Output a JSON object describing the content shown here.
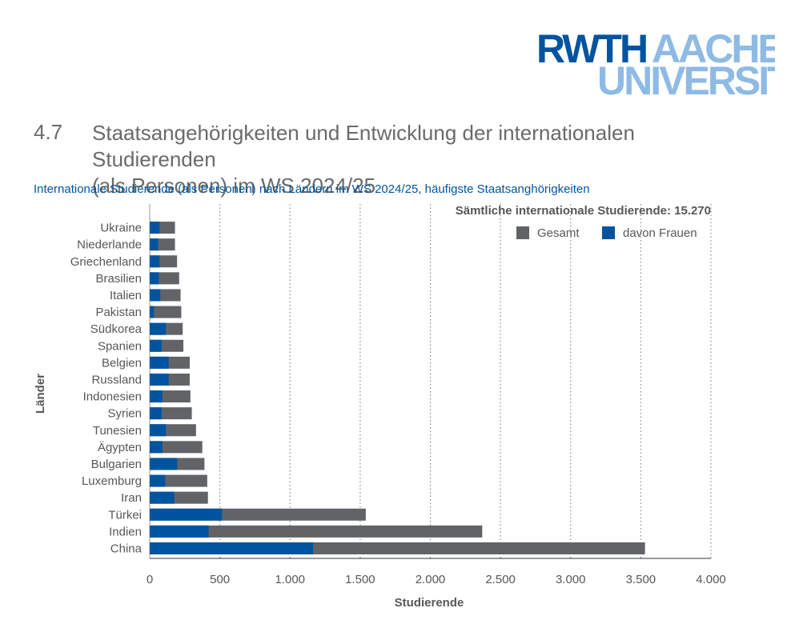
{
  "logo": {
    "part1": "RWTH",
    "part2": "AACHEN",
    "part3": "UNIVERSITY"
  },
  "section": {
    "number": "4.7",
    "title_line1": "Staatsangehörigkeiten und Entwicklung der internationalen Studierenden",
    "title_line2": "(als Personen) im WS 2024/25"
  },
  "subtitle": "Internationale Studierende (als Personen) nach Ländern im WS 2024/25, häufigste Staatsanghörigkeiten",
  "colors": {
    "gesamt": "#616366",
    "frauen": "#00549f",
    "logo_dark": "#00549f",
    "logo_light": "#8ebae5"
  },
  "chart_data": {
    "type": "bar",
    "orientation": "horizontal",
    "stacked_overlay": true,
    "annotation": "Sämtliche internationale Studierende: 15.270",
    "xlabel": "Studierende",
    "ylabel": "Länder",
    "xlim": [
      0,
      4000
    ],
    "x_ticks": [
      0,
      500,
      1000,
      1500,
      2000,
      2500,
      3000,
      3500,
      4000
    ],
    "x_tick_labels": [
      "0",
      "500",
      "1.000",
      "1.500",
      "2.000",
      "2.500",
      "3.000",
      "3.500",
      "4.000"
    ],
    "grid": "vertical dotted",
    "legend_position": "top-right",
    "categories": [
      "Ukraine",
      "Niederlande",
      "Griechenland",
      "Brasilien",
      "Italien",
      "Pakistan",
      "Südkorea",
      "Spanien",
      "Belgien",
      "Russland",
      "Indonesien",
      "Syrien",
      "Tunesien",
      "Ägypten",
      "Bulgarien",
      "Luxemburg",
      "Iran",
      "Türkei",
      "Indien",
      "China"
    ],
    "series": [
      {
        "name": "Gesamt",
        "color": "#616366",
        "values": [
          180,
          180,
          195,
          210,
          220,
          225,
          235,
          240,
          285,
          285,
          290,
          300,
          330,
          375,
          390,
          410,
          415,
          1540,
          2370,
          3530
        ]
      },
      {
        "name": "davon Frauen",
        "color": "#00549f",
        "values": [
          70,
          60,
          70,
          65,
          75,
          30,
          115,
          85,
          135,
          135,
          90,
          85,
          115,
          90,
          195,
          110,
          175,
          515,
          420,
          1165
        ]
      }
    ]
  }
}
